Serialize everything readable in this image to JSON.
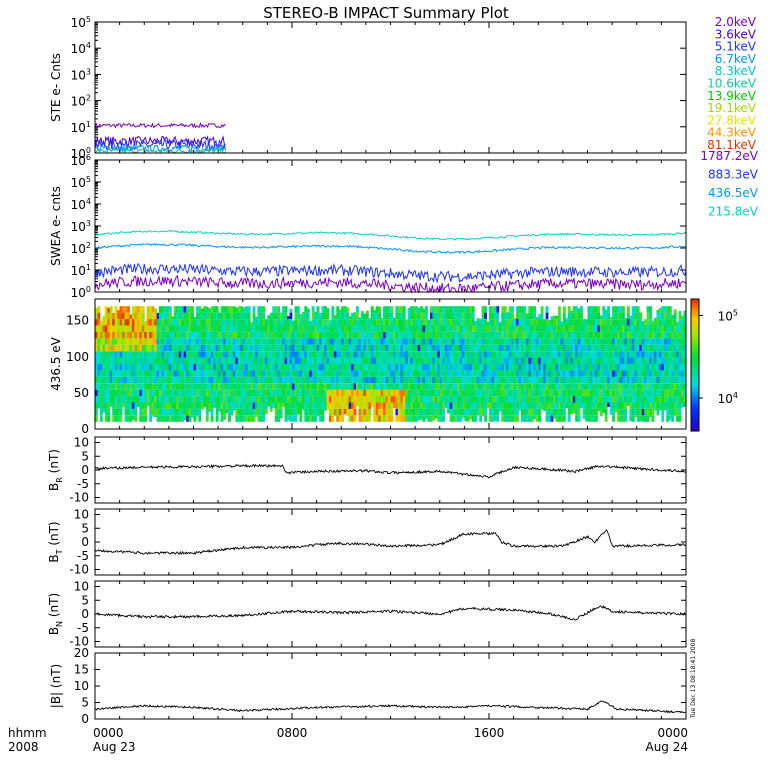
{
  "title": "STEREO-B IMPACT Summary Plot",
  "time_axis": {
    "row1_label": "hhmm",
    "row2_label": "2008",
    "ticks": [
      {
        "hour": 0,
        "label": "0000",
        "date": "Aug 23"
      },
      {
        "hour": 8,
        "label": "0800",
        "date": ""
      },
      {
        "hour": 16,
        "label": "1600",
        "date": ""
      },
      {
        "hour": 24,
        "label": "0000",
        "date": "Aug 24"
      }
    ],
    "range_hours": [
      0,
      24
    ],
    "minor_ticks_hours": 1
  },
  "timestamp_stamp": "Tue Dec 13 08:18:41 2008",
  "colors": {
    "axis": "#000000",
    "background": "#ffffff"
  },
  "chart_data": [
    {
      "id": "ste",
      "type": "line",
      "ylabel": "STE e- Cnts",
      "yscale": "log",
      "ylim_log10": [
        0,
        5
      ],
      "yticks": [
        {
          "base": "10",
          "exp": "0"
        },
        {
          "base": "10",
          "exp": "1"
        },
        {
          "base": "10",
          "exp": "2"
        },
        {
          "base": "10",
          "exp": "3"
        },
        {
          "base": "10",
          "exp": "4"
        },
        {
          "base": "10",
          "exp": "5"
        }
      ],
      "data_end_hour": 5.3,
      "legend": [
        {
          "name": "2.0keV",
          "color": "#7a00c8"
        },
        {
          "name": "3.6keV",
          "color": "#4b00d8"
        },
        {
          "name": "5.1keV",
          "color": "#1e32ff"
        },
        {
          "name": "6.7keV",
          "color": "#0096ff"
        },
        {
          "name": "8.3keV",
          "color": "#00c8d2"
        },
        {
          "name": "10.6keV",
          "color": "#00d2a0"
        },
        {
          "name": "13.9keV",
          "color": "#00c800"
        },
        {
          "name": "19.1keV",
          "color": "#a0dc00"
        },
        {
          "name": "27.8keV",
          "color": "#f0e000"
        },
        {
          "name": "44.3keV",
          "color": "#ff9600"
        },
        {
          "name": "81.1keV",
          "color": "#e63200"
        }
      ],
      "series_levels_log10": [
        {
          "color": "#7a00c8",
          "level": 1.05,
          "noise": 0.08
        },
        {
          "color": "#4b00d8",
          "level": 0.45,
          "noise": 0.18
        },
        {
          "color": "#1e32ff",
          "level": 0.3,
          "noise": 0.2
        },
        {
          "color": "#0096ff",
          "level": 0.18,
          "noise": 0.12
        },
        {
          "color": "#00c8a0",
          "level": 0.08,
          "noise": 0.08
        }
      ]
    },
    {
      "id": "swea",
      "type": "line",
      "ylabel": "SWEA e- cnts",
      "yscale": "log",
      "ylim_log10": [
        0,
        6
      ],
      "yticks": [
        {
          "base": "10",
          "exp": "0"
        },
        {
          "base": "10",
          "exp": "1"
        },
        {
          "base": "10",
          "exp": "2"
        },
        {
          "base": "10",
          "exp": "3"
        },
        {
          "base": "10",
          "exp": "4"
        },
        {
          "base": "10",
          "exp": "5"
        },
        {
          "base": "10",
          "exp": "6"
        }
      ],
      "legend": [
        {
          "name": "1787.2eV",
          "color": "#7a00c8"
        },
        {
          "name": "883.3eV",
          "color": "#1e32ff"
        },
        {
          "name": "436.5eV",
          "color": "#0096ff"
        },
        {
          "name": "215.8eV",
          "color": "#00d2c8"
        }
      ],
      "series_levels_log10": [
        {
          "color": "#00d2c8",
          "level": 2.6,
          "noise": 0.04
        },
        {
          "color": "#0096ff",
          "level": 2.0,
          "noise": 0.05
        },
        {
          "color": "#1e32ff",
          "level": 0.9,
          "noise": 0.25
        },
        {
          "color": "#7a00c8",
          "level": 0.35,
          "noise": 0.25
        }
      ]
    },
    {
      "id": "pad",
      "type": "heatmap",
      "ylabel": "436.5 eV",
      "ylim": [
        0,
        180
      ],
      "yticks": [
        0,
        50,
        100,
        150
      ],
      "colorbar_ticks": [
        {
          "base": "10",
          "exp": "5"
        },
        {
          "base": "10",
          "exp": "4"
        }
      ],
      "colorbar_log10": [
        3.6,
        5.2
      ]
    },
    {
      "id": "br",
      "type": "line",
      "ylabel_main": "B",
      "ylabel_sub": "R",
      "ylabel_unit": " (nT)",
      "ylim": [
        -12,
        12
      ],
      "yticks": [
        -10,
        -5,
        0,
        5,
        10
      ],
      "segments": [
        [
          0,
          0.5
        ],
        [
          2,
          1.0
        ],
        [
          4,
          1.2
        ],
        [
          6,
          1.5
        ],
        [
          7.6,
          1.5
        ],
        [
          7.8,
          -1.0
        ],
        [
          9,
          -0.5
        ],
        [
          11,
          -0.3
        ],
        [
          12,
          -1.0
        ],
        [
          14,
          -0.5
        ],
        [
          15,
          -1.5
        ],
        [
          16,
          -2.5
        ],
        [
          17,
          1.0
        ],
        [
          18,
          0.5
        ],
        [
          19.5,
          -0.5
        ],
        [
          20.5,
          1.5
        ],
        [
          22,
          0.5
        ],
        [
          24,
          -0.5
        ]
      ]
    },
    {
      "id": "bt",
      "type": "line",
      "ylabel_main": "B",
      "ylabel_sub": "T",
      "ylabel_unit": " (nT)",
      "ylim": [
        -12,
        12
      ],
      "yticks": [
        -10,
        -5,
        0,
        5,
        10
      ],
      "segments": [
        [
          0,
          -3
        ],
        [
          2,
          -4
        ],
        [
          4,
          -4
        ],
        [
          6,
          -2
        ],
        [
          8,
          -2
        ],
        [
          9,
          -1
        ],
        [
          10,
          -0.5
        ],
        [
          11,
          -0.8
        ],
        [
          12,
          -1.5
        ],
        [
          14,
          -1
        ],
        [
          15,
          3
        ],
        [
          16.3,
          3
        ],
        [
          16.5,
          0
        ],
        [
          17,
          -1.5
        ],
        [
          19,
          -1.5
        ],
        [
          20,
          2
        ],
        [
          20.3,
          0
        ],
        [
          20.8,
          4.5
        ],
        [
          21,
          -1.5
        ],
        [
          24,
          -1
        ]
      ]
    },
    {
      "id": "bn",
      "type": "line",
      "ylabel_main": "B",
      "ylabel_sub": "N",
      "ylabel_unit": " (nT)",
      "ylim": [
        -12,
        12
      ],
      "yticks": [
        -10,
        -5,
        0,
        5,
        10
      ],
      "segments": [
        [
          0,
          0
        ],
        [
          2,
          -1
        ],
        [
          4,
          -1
        ],
        [
          6,
          -0.5
        ],
        [
          8,
          1
        ],
        [
          10,
          0.5
        ],
        [
          12,
          1
        ],
        [
          14,
          0
        ],
        [
          15,
          2
        ],
        [
          17,
          1.5
        ],
        [
          18.5,
          0
        ],
        [
          19.5,
          -2
        ],
        [
          20.5,
          3
        ],
        [
          21,
          1
        ],
        [
          22,
          0.5
        ],
        [
          24,
          0
        ]
      ]
    },
    {
      "id": "bmag",
      "type": "line",
      "ylabel": "|B| (nT)",
      "ylim": [
        0,
        20
      ],
      "yticks": [
        0,
        5,
        10,
        15,
        20
      ],
      "segments": [
        [
          0,
          3
        ],
        [
          2,
          4
        ],
        [
          4,
          3.5
        ],
        [
          6,
          2.5
        ],
        [
          9,
          3.5
        ],
        [
          12,
          4
        ],
        [
          14,
          3.5
        ],
        [
          16,
          4
        ],
        [
          18,
          3.5
        ],
        [
          20,
          3
        ],
        [
          20.6,
          5.5
        ],
        [
          21.2,
          3
        ],
        [
          24,
          2
        ]
      ]
    }
  ]
}
